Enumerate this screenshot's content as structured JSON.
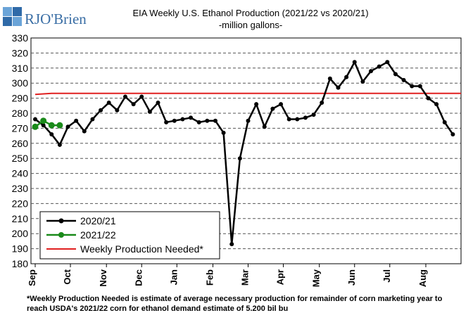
{
  "brand": {
    "name": "RJO'Brien",
    "color": "#3a6ea5"
  },
  "chart_data": {
    "type": "line",
    "title": "EIA Weekly U.S. Ethanol Production (2021/22 vs 2020/21)",
    "subtitle": "-million gallons-",
    "ylim": [
      180,
      330
    ],
    "y_ticks": [
      180,
      190,
      200,
      210,
      220,
      230,
      240,
      250,
      260,
      270,
      280,
      290,
      300,
      310,
      320,
      330
    ],
    "x_ticks": [
      "Sep",
      "Oct",
      "Nov",
      "Dec",
      "Jan",
      "Feb",
      "Mar",
      "Apr",
      "May",
      "Jun",
      "Jul",
      "Aug"
    ],
    "x_tick_weeks": [
      0,
      4.3,
      8.7,
      13,
      17.3,
      21.7,
      26,
      30.3,
      34.7,
      39,
      43.3,
      47.7
    ],
    "x_max_week": 52,
    "grid": true,
    "legend_placement": "bottom-left",
    "series": [
      {
        "name": "2020/21",
        "color": "#000000",
        "values": [
          276,
          272,
          266,
          259,
          271,
          275,
          268,
          276,
          282,
          287,
          282,
          291,
          286,
          291,
          281,
          287,
          274,
          275,
          276,
          277,
          274,
          275,
          275,
          267,
          193,
          250,
          275,
          286,
          271,
          283,
          286,
          276,
          276,
          277,
          279,
          287,
          303,
          297,
          304,
          314,
          301,
          308,
          311,
          314,
          306,
          302,
          298,
          298,
          290,
          286,
          274,
          266
        ]
      },
      {
        "name": "2021/22",
        "color": "#1a8a1a",
        "values": [
          271,
          275,
          272,
          272
        ]
      },
      {
        "name": "Weekly Production Needed*",
        "color": "#e02020",
        "values": [
          292.5,
          293.2,
          293.2
        ]
      }
    ],
    "footnote_line1": "*Weekly Production Needed is estimate of average necessary production for remainder of corn marketing year to",
    "footnote_line2": "reach USDA's 2021/22 corn for ethanol demand estimate of 5.200 bil bu"
  }
}
